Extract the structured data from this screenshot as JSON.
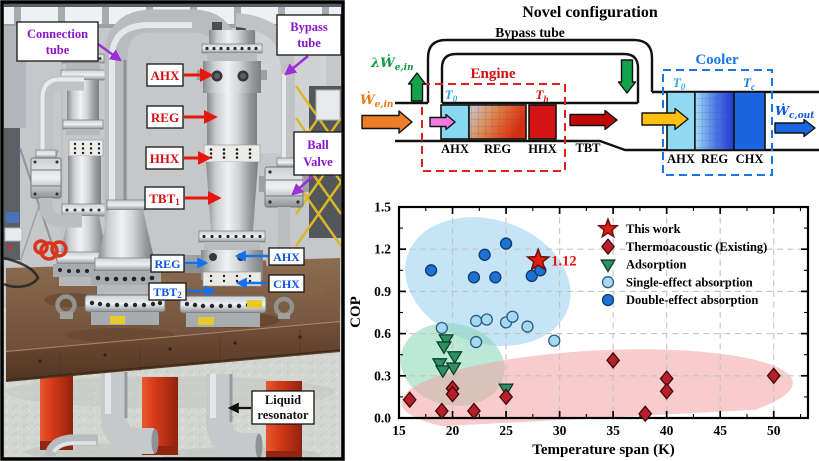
{
  "photo": {
    "labels": {
      "connection_tube": {
        "l1": "Connection",
        "l2": "tube"
      },
      "bypass_tube": {
        "l1": "Bypass",
        "l2": "tube"
      },
      "ahx_top": "AHX",
      "reg_top": "REG",
      "hhx_top": "HHX",
      "tbt1": {
        "m": "TBT",
        "s": "1"
      },
      "ball_valve": {
        "l1": "Ball",
        "l2": "Valve"
      },
      "reg_bottom": "REG",
      "ahx_bottom": "AHX",
      "tbt2": {
        "m": "TBT",
        "s": "2"
      },
      "chx_bottom": "CHX",
      "liquid_resonator": {
        "l1": "Liquid",
        "l2": "resonator"
      }
    }
  },
  "schematic": {
    "title": "Novel configuration",
    "bypass_label": "Bypass tube",
    "engine": {
      "title": "Engine",
      "components": [
        "AHX",
        "REG",
        "HHX"
      ],
      "t_left": {
        "m": "T",
        "s": "0"
      },
      "t_right": {
        "m": "T",
        "s": "h"
      }
    },
    "cooler": {
      "title": "Cooler",
      "components": [
        "AHX",
        "REG",
        "CHX"
      ],
      "t_left": {
        "m": "T",
        "s": "0"
      },
      "t_right": {
        "m": "T",
        "s": "c"
      }
    },
    "tbt_label": "TBT",
    "power_in": {
      "m": "Ẇ",
      "s": "e,in"
    },
    "feedback": {
      "m": "λẆ",
      "s": "e,in"
    },
    "cooling_out": {
      "m": "Ẇ",
      "s": "c,out"
    },
    "colors": {
      "engine": "#cf1010",
      "cooler": "#1578e8",
      "t0": "#29abe2",
      "th": "#d41414",
      "tc": "#1578e8",
      "power_in": "#e8791a",
      "feedback": "#0f9b42",
      "cooling_out": "#0b55e0"
    }
  },
  "chart_data": {
    "type": "scatter",
    "title": "",
    "xlabel": "Temperature span (K)",
    "ylabel": "COP",
    "xlim": [
      15,
      53.2
    ],
    "ylim": [
      0,
      1.5
    ],
    "xticks": [
      15,
      20,
      25,
      30,
      35,
      40,
      45,
      50
    ],
    "yticks": [
      0.0,
      0.3,
      0.6,
      0.9,
      1.2,
      1.5
    ],
    "x_minor_step": 2.5,
    "y_minor_step": 0.15,
    "grid": "dashed",
    "legend_position": "top-right",
    "annotation": {
      "text": "1.12",
      "x": 28,
      "y": 1.12,
      "color": "#e8150d"
    },
    "regions": [
      {
        "name": "absorption-region",
        "cx": 23.3,
        "cy": 0.97,
        "rx_k": 7.9,
        "ry_cop": 0.44,
        "angle": 18,
        "color": "#9fd2ee",
        "opacity": 0.6
      },
      {
        "name": "adsorption-region",
        "cx": 20.0,
        "cy": 0.38,
        "rx_k": 4.9,
        "ry_cop": 0.29,
        "angle": 12,
        "color": "#85d6b5",
        "opacity": 0.55
      },
      {
        "name": "thermoacoustic-region",
        "cx": 33.5,
        "cy": 0.18,
        "rx_k": 18.3,
        "ry_cop": 0.3,
        "angle": -3,
        "color": "#f2a0a3",
        "opacity": 0.55
      }
    ],
    "series": [
      {
        "name": "This work",
        "marker": "star",
        "color": "#ea1c0d",
        "edge": "#6b1410",
        "size": 11,
        "points": [
          [
            28,
            1.12
          ]
        ]
      },
      {
        "name": "Thermoacoustic (Existing)",
        "marker": "diamond",
        "color": "#b6202a",
        "edge": "#43060c",
        "size": 7.5,
        "points": [
          [
            16,
            0.13
          ],
          [
            19,
            0.05
          ],
          [
            20,
            0.21
          ],
          [
            20,
            0.17
          ],
          [
            22,
            0.05
          ],
          [
            25,
            0.15
          ],
          [
            35,
            0.41
          ],
          [
            38,
            0.03
          ],
          [
            40,
            0.28
          ],
          [
            40,
            0.19
          ],
          [
            50,
            0.3
          ]
        ]
      },
      {
        "name": "Adsorption",
        "marker": "triangle-down",
        "color": "#2e8f63",
        "edge": "#0c3f2a",
        "size": 7.2,
        "points": [
          [
            19.4,
            0.56
          ],
          [
            19.2,
            0.51
          ],
          [
            20.2,
            0.44
          ],
          [
            18.8,
            0.39
          ],
          [
            19.1,
            0.34
          ],
          [
            20.1,
            0.36
          ],
          [
            25,
            0.21
          ]
        ]
      },
      {
        "name": "Single-effect absorption",
        "marker": "circle",
        "color": "#a8d8ef",
        "edge": "#2a5d85",
        "size": 5.5,
        "points": [
          [
            19,
            0.64
          ],
          [
            22.2,
            0.69
          ],
          [
            23.2,
            0.7
          ],
          [
            22.2,
            0.54
          ],
          [
            25,
            0.68
          ],
          [
            25.6,
            0.72
          ],
          [
            27,
            0.65
          ],
          [
            29.5,
            0.55
          ]
        ]
      },
      {
        "name": "Double-effect absorption",
        "marker": "circle",
        "color": "#1e72d4",
        "edge": "#0e3a68",
        "size": 5.5,
        "points": [
          [
            18,
            1.05
          ],
          [
            22,
            1.0
          ],
          [
            23,
            1.16
          ],
          [
            24,
            1.0
          ],
          [
            25,
            1.24
          ],
          [
            27.4,
            1.01
          ],
          [
            28.2,
            1.05
          ]
        ]
      }
    ]
  }
}
